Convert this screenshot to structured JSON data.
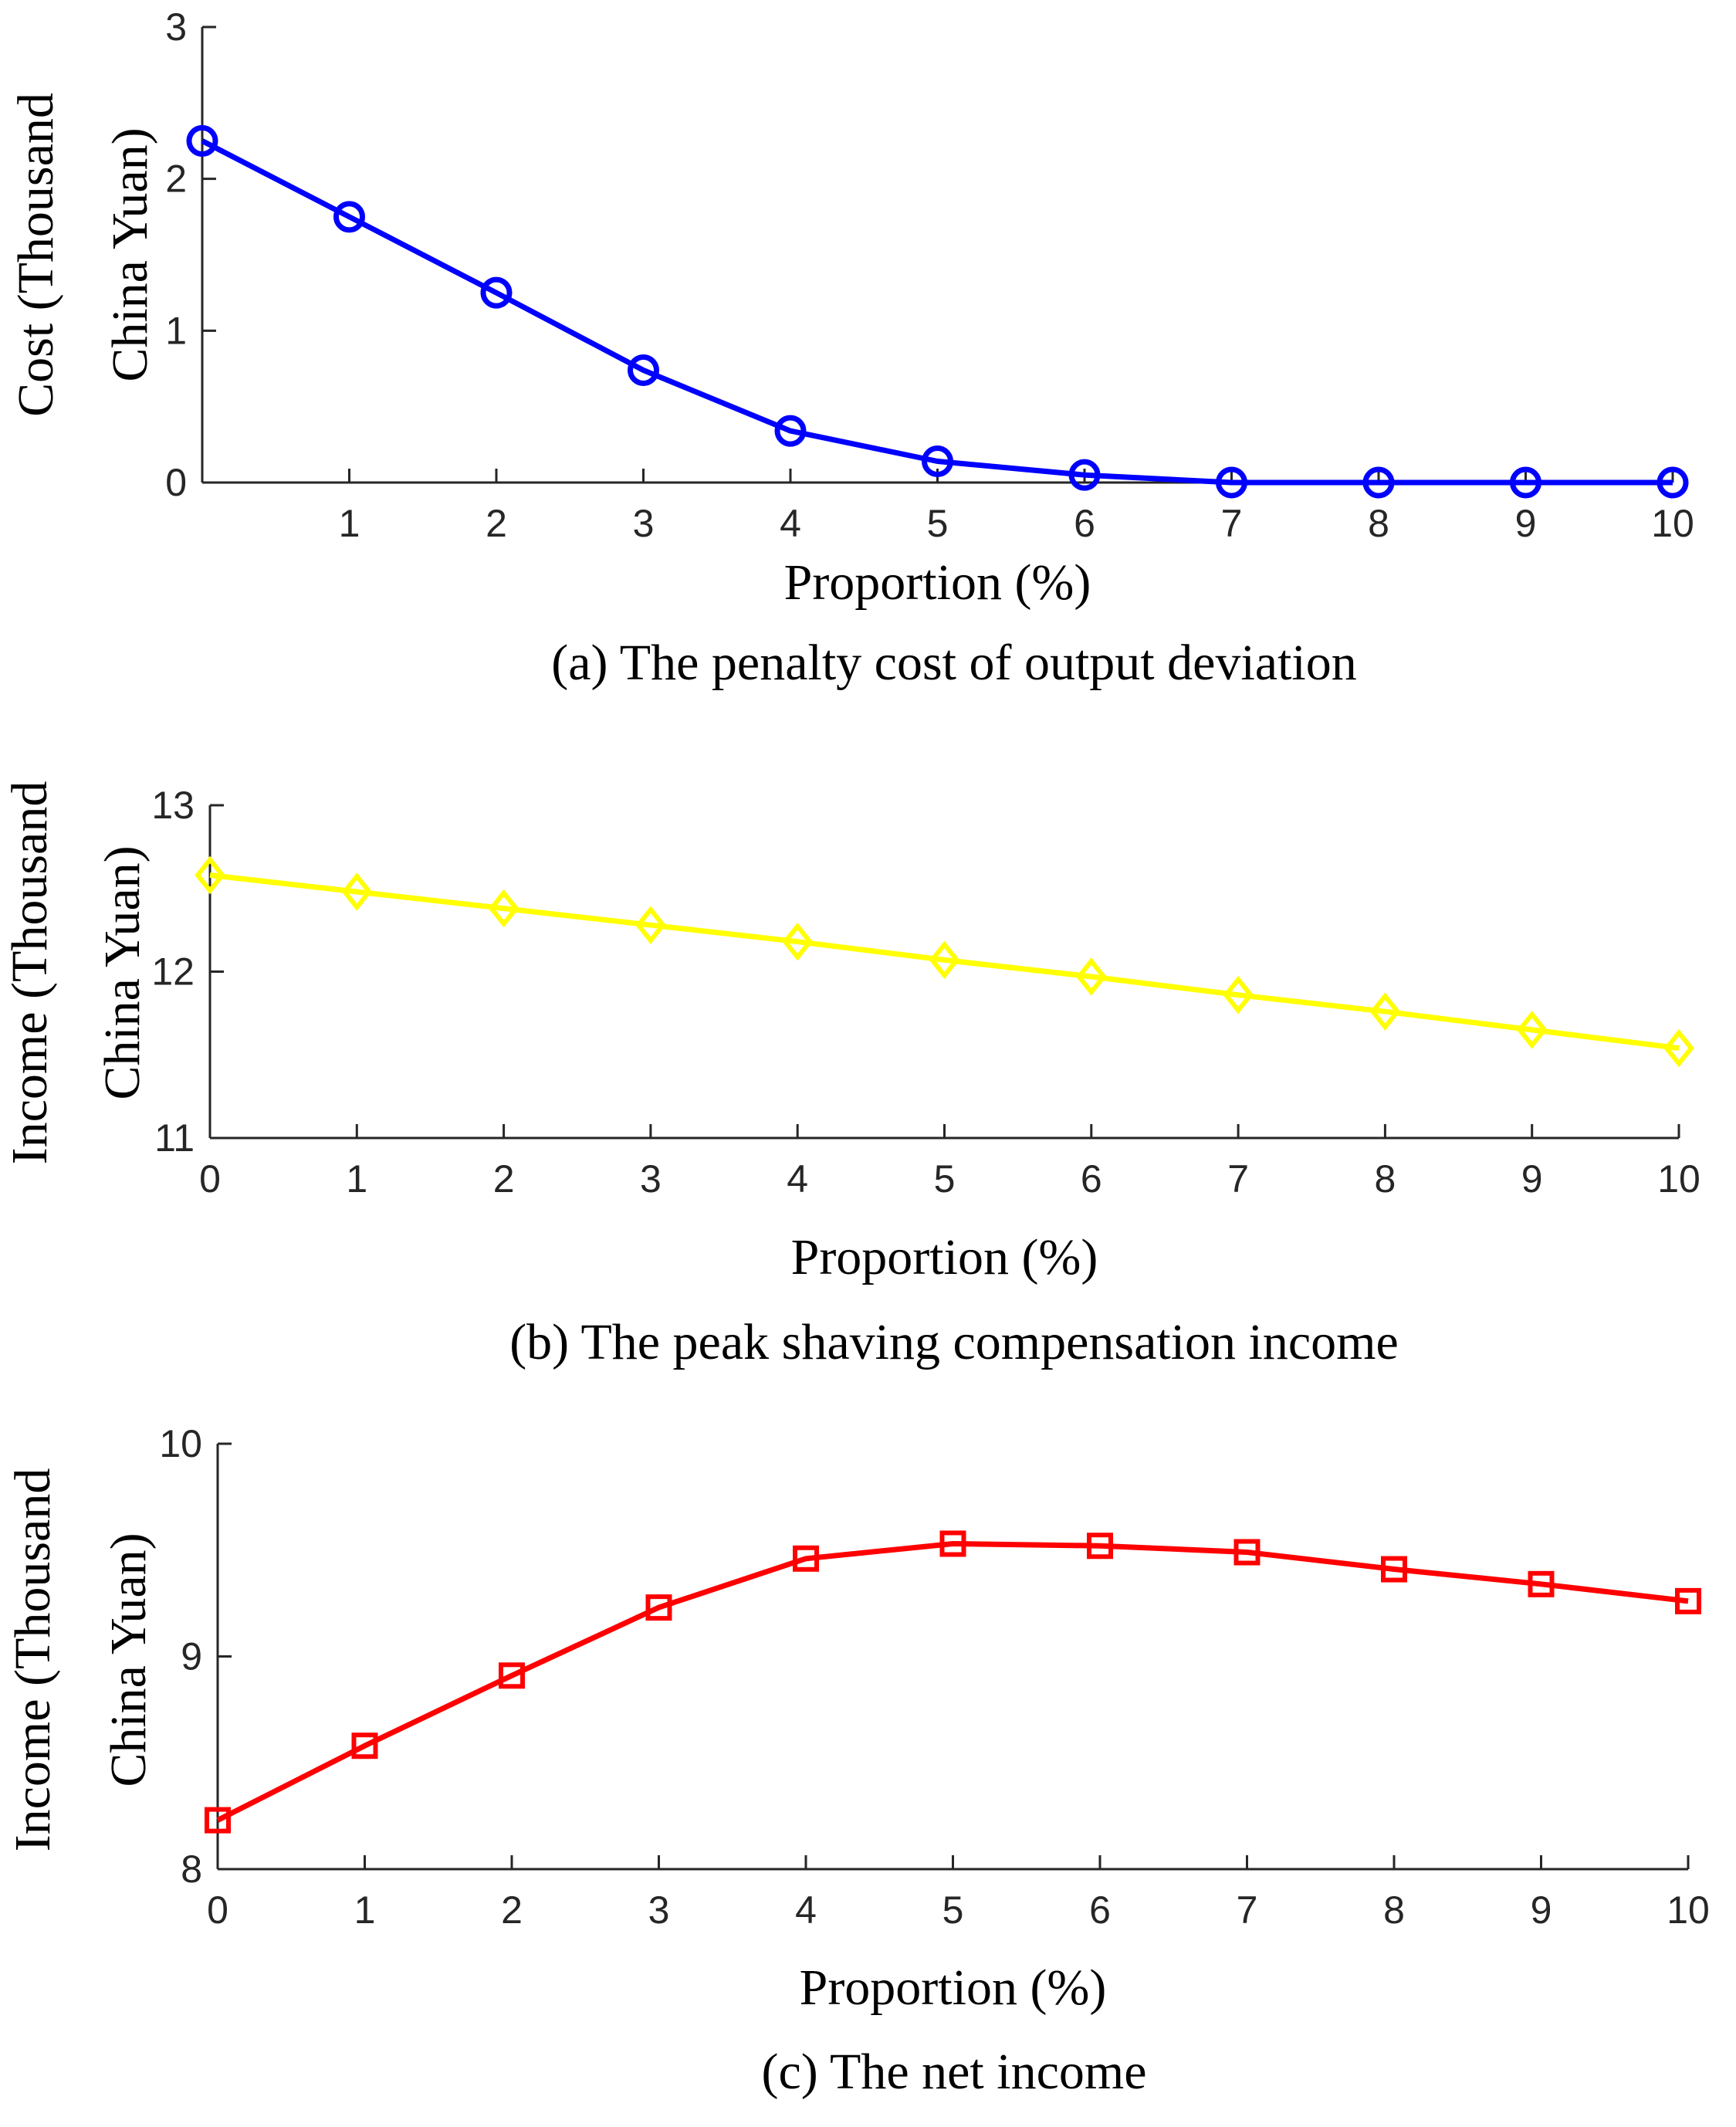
{
  "chart_data": [
    {
      "id": "a",
      "type": "line",
      "title": "(a) The penalty cost of output deviation",
      "xlabel": "Proportion (%)",
      "ylabel": [
        "Cost (Thousand",
        "China Yuan)"
      ],
      "x": [
        0,
        1,
        2,
        3,
        4,
        5,
        6,
        7,
        8,
        9,
        10
      ],
      "xlim": [
        0,
        10
      ],
      "xticks": [
        1,
        2,
        3,
        4,
        5,
        6,
        7,
        8,
        9,
        10
      ],
      "ylim": [
        0,
        3
      ],
      "yticks": [
        0,
        1,
        2,
        3
      ],
      "grid": false,
      "series": [
        {
          "name": "Penalty cost",
          "color": "#0000ff",
          "marker": "circle",
          "values": [
            2.25,
            1.75,
            1.25,
            0.74,
            0.34,
            0.14,
            0.05,
            0.0,
            0.0,
            0.0,
            0.0
          ]
        }
      ]
    },
    {
      "id": "b",
      "type": "line",
      "title": "(b) The peak shaving compensation income",
      "xlabel": "Proportion (%)",
      "ylabel": [
        "Income (Thousand",
        "China Yuan)"
      ],
      "x": [
        0,
        1,
        2,
        3,
        4,
        5,
        6,
        7,
        8,
        9,
        10
      ],
      "xlim": [
        0,
        10
      ],
      "xticks": [
        0,
        1,
        2,
        3,
        4,
        5,
        6,
        7,
        8,
        9,
        10
      ],
      "ylim": [
        11,
        13
      ],
      "yticks": [
        11,
        12,
        13
      ],
      "grid": false,
      "series": [
        {
          "name": "Peak shaving compensation income",
          "color": "#ffff00",
          "marker": "diamond",
          "values": [
            12.58,
            12.48,
            12.38,
            12.28,
            12.18,
            12.07,
            11.97,
            11.86,
            11.76,
            11.65,
            11.54
          ]
        }
      ]
    },
    {
      "id": "c",
      "type": "line",
      "title": "(c) The net income",
      "xlabel": "Proportion (%)",
      "ylabel": [
        "Income (Thousand",
        "China Yuan)"
      ],
      "x": [
        0,
        1,
        2,
        3,
        4,
        5,
        6,
        7,
        8,
        9,
        10
      ],
      "xlim": [
        0,
        10
      ],
      "xticks": [
        0,
        1,
        2,
        3,
        4,
        5,
        6,
        7,
        8,
        9,
        10
      ],
      "ylim": [
        8,
        10
      ],
      "yticks": [
        8,
        9,
        10
      ],
      "grid": false,
      "series": [
        {
          "name": "Net income",
          "color": "#ff0000",
          "marker": "square",
          "values": [
            8.23,
            8.58,
            8.91,
            9.23,
            9.46,
            9.53,
            9.52,
            9.49,
            9.41,
            9.34,
            9.26
          ]
        }
      ]
    }
  ]
}
